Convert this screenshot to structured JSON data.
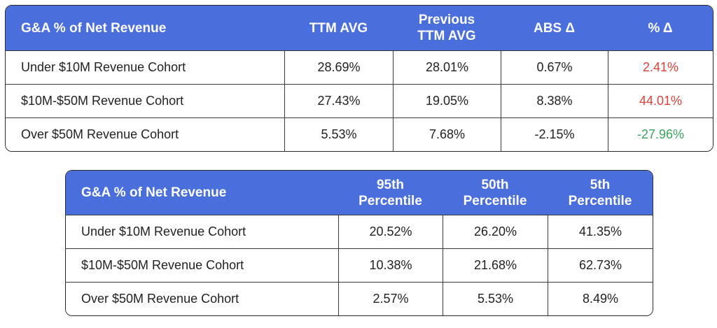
{
  "table1": {
    "headers": [
      "G&A % of Net Revenue",
      "TTM AVG",
      "Previous TTM AVG",
      "ABS Δ",
      "% Δ"
    ],
    "header_lines": {
      "c0": [
        "G&A % of Net Revenue"
      ],
      "c1": [
        "TTM AVG"
      ],
      "c2": [
        "Previous",
        "TTM AVG"
      ],
      "c3": [
        "ABS Δ"
      ],
      "c4": [
        "% Δ"
      ]
    },
    "rows": [
      {
        "label": "Under $10M Revenue Cohort",
        "ttm_avg": "28.69%",
        "prev_ttm_avg": "28.01%",
        "abs_delta": "0.67%",
        "pct_delta": "2.41%"
      },
      {
        "label": "$10M-$50M Revenue Cohort",
        "ttm_avg": "27.43%",
        "prev_ttm_avg": "19.05%",
        "abs_delta": "8.38%",
        "pct_delta": "44.01%"
      },
      {
        "label": "Over $50M Revenue Cohort",
        "ttm_avg": "5.53%",
        "prev_ttm_avg": "7.68%",
        "abs_delta": "-2.15%",
        "pct_delta": "-27.96%"
      }
    ]
  },
  "table2": {
    "headers": [
      "G&A % of Net Revenue",
      "95th Percentile",
      "50th Percentile",
      "5th Percentile"
    ],
    "header_lines": {
      "c0": [
        "G&A % of Net Revenue"
      ],
      "c1": [
        "95th",
        "Percentile"
      ],
      "c2": [
        "50th",
        "Percentile"
      ],
      "c3": [
        "5th",
        "Percentile"
      ]
    },
    "rows": [
      {
        "label": "Under $10M Revenue Cohort",
        "p95": "20.52%",
        "p50": "26.20%",
        "p5": "41.35%"
      },
      {
        "label": "$10M-$50M Revenue Cohort",
        "p95": "10.38%",
        "p50": "21.68%",
        "p5": "62.73%"
      },
      {
        "label": "Over $50M Revenue Cohort",
        "p95": "2.57%",
        "p50": "5.53%",
        "p5": "8.49%"
      }
    ]
  },
  "colors": {
    "header_bg": "#4a6fdc",
    "header_text": "#ffffff",
    "positive_delta": "#e0403a",
    "negative_delta": "#3aa35a",
    "border": "#2b2b2b"
  }
}
